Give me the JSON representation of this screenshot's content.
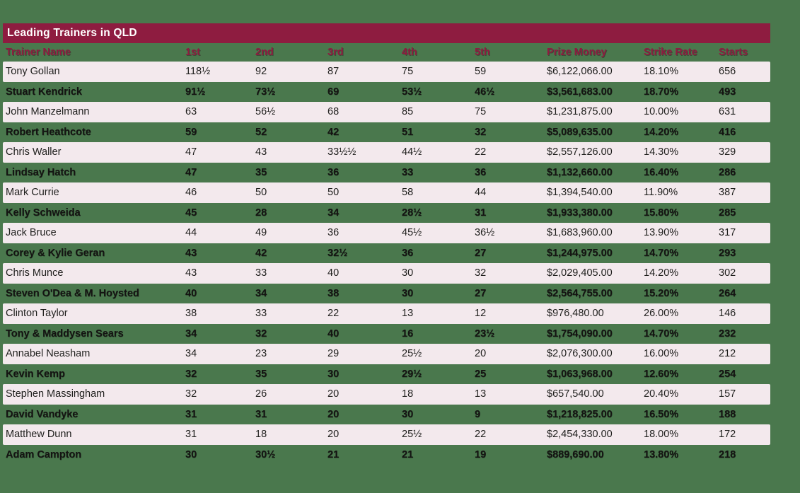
{
  "title": "Leading Trainers in QLD",
  "colors": {
    "background_green": "#4a784d",
    "title_bar_maroon": "#8e1c40",
    "header_text_maroon": "#8e1c40",
    "row_pink": "#f3e9ed",
    "row_text_dark": "#1f1f1d",
    "title_text_white": "#ffffff"
  },
  "chart_data": {
    "type": "table",
    "title": "Leading Trainers in QLD",
    "columns": [
      "Trainer Name",
      "1st",
      "2nd",
      "3rd",
      "4th",
      "5th",
      "Prize Money",
      "Strike Rate",
      "Starts"
    ],
    "rows": [
      [
        "Tony Gollan",
        "118½",
        "92",
        "87",
        "75",
        "59",
        "$6,122,066.00",
        "18.10%",
        "656"
      ],
      [
        "Stuart Kendrick",
        "91½",
        "73½",
        "69",
        "53½",
        "46½",
        "$3,561,683.00",
        "18.70%",
        "493"
      ],
      [
        "John Manzelmann",
        "63",
        "56½",
        "68",
        "85",
        "75",
        "$1,231,875.00",
        "10.00%",
        "631"
      ],
      [
        "Robert Heathcote",
        "59",
        "52",
        "42",
        "51",
        "32",
        "$5,089,635.00",
        "14.20%",
        "416"
      ],
      [
        "Chris Waller",
        "47",
        "43",
        "33½½",
        "44½",
        "22",
        "$2,557,126.00",
        "14.30%",
        "329"
      ],
      [
        "Lindsay Hatch",
        "47",
        "35",
        "36",
        "33",
        "36",
        "$1,132,660.00",
        "16.40%",
        "286"
      ],
      [
        "Mark Currie",
        "46",
        "50",
        "50",
        "58",
        "44",
        "$1,394,540.00",
        "11.90%",
        "387"
      ],
      [
        "Kelly Schweida",
        "45",
        "28",
        "34",
        "28½",
        "31",
        "$1,933,380.00",
        "15.80%",
        "285"
      ],
      [
        "Jack Bruce",
        "44",
        "49",
        "36",
        "45½",
        "36½",
        "$1,683,960.00",
        "13.90%",
        "317"
      ],
      [
        "Corey & Kylie Geran",
        "43",
        "42",
        "32½",
        "36",
        "27",
        "$1,244,975.00",
        "14.70%",
        "293"
      ],
      [
        "Chris Munce",
        "43",
        "33",
        "40",
        "30",
        "32",
        "$2,029,405.00",
        "14.20%",
        "302"
      ],
      [
        "Steven O'Dea & M. Hoysted",
        "40",
        "34",
        "38",
        "30",
        "27",
        "$2,564,755.00",
        "15.20%",
        "264"
      ],
      [
        "Clinton Taylor",
        "38",
        "33",
        "22",
        "13",
        "12",
        "$976,480.00",
        "26.00%",
        "146"
      ],
      [
        "Tony & Maddysen Sears",
        "34",
        "32",
        "40",
        "16",
        "23½",
        "$1,754,090.00",
        "14.70%",
        "232"
      ],
      [
        "Annabel Neasham",
        "34",
        "23",
        "29",
        "25½",
        "20",
        "$2,076,300.00",
        "16.00%",
        "212"
      ],
      [
        "Kevin Kemp",
        "32",
        "35",
        "30",
        "29½",
        "25",
        "$1,063,968.00",
        "12.60%",
        "254"
      ],
      [
        "Stephen Massingham",
        "32",
        "26",
        "20",
        "18",
        "13",
        "$657,540.00",
        "20.40%",
        "157"
      ],
      [
        "David Vandyke",
        "31",
        "31",
        "20",
        "30",
        "9",
        "$1,218,825.00",
        "16.50%",
        "188"
      ],
      [
        "Matthew Dunn",
        "31",
        "18",
        "20",
        "25½",
        "22",
        "$2,454,330.00",
        "18.00%",
        "172"
      ],
      [
        "Adam Campton",
        "30",
        "30½",
        "21",
        "21",
        "19",
        "$889,690.00",
        "13.80%",
        "218"
      ]
    ]
  }
}
